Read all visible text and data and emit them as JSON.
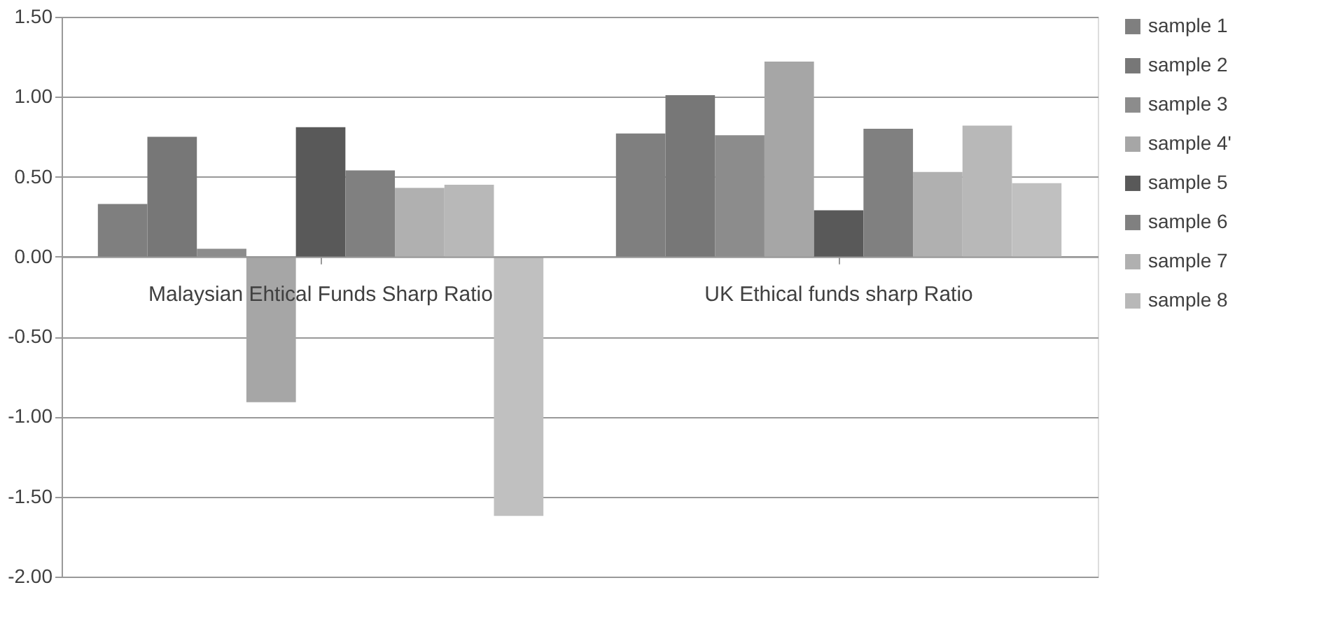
{
  "chart_data": {
    "type": "bar",
    "categories": [
      "Malaysian Ehtical Funds Sharp Ratio",
      "UK Ethical funds sharp Ratio"
    ],
    "series": [
      {
        "name": "sample 1",
        "color": "#7f7f7f",
        "values": [
          0.33,
          0.77
        ]
      },
      {
        "name": "sample 2",
        "color": "#777777",
        "values": [
          0.75,
          1.01
        ]
      },
      {
        "name": "sample 3",
        "color": "#8c8c8c",
        "values": [
          0.05,
          0.76
        ]
      },
      {
        "name": "sample 4'",
        "color": "#a6a6a6",
        "values": [
          -0.91,
          1.22
        ]
      },
      {
        "name": "sample 5",
        "color": "#595959",
        "values": [
          0.81,
          0.29
        ]
      },
      {
        "name": "sample 6",
        "color": "#808080",
        "values": [
          0.54,
          0.8
        ]
      },
      {
        "name": "sample 7",
        "color": "#b0b0b0",
        "values": [
          0.43,
          0.53
        ]
      },
      {
        "name": "sample 8",
        "color": "#b8b8b8",
        "values": [
          0.45,
          0.82
        ]
      },
      {
        "color": "#c0c0c0",
        "values": [
          -1.62,
          0.46
        ]
      }
    ],
    "ylim": [
      -2.0,
      1.5
    ],
    "yticks": [
      {
        "value": -2.0,
        "label": "-2.00"
      },
      {
        "value": -1.5,
        "label": "-1.50"
      },
      {
        "value": -1.0,
        "label": "-1.00"
      },
      {
        "value": -0.5,
        "label": "-0.50"
      },
      {
        "value": 0.0,
        "label": "0.00"
      },
      {
        "value": 0.5,
        "label": "0.50"
      },
      {
        "value": 1.0,
        "label": "1.00"
      },
      {
        "value": 1.5,
        "label": "1.50"
      }
    ],
    "grid": "y",
    "legend": "right"
  }
}
